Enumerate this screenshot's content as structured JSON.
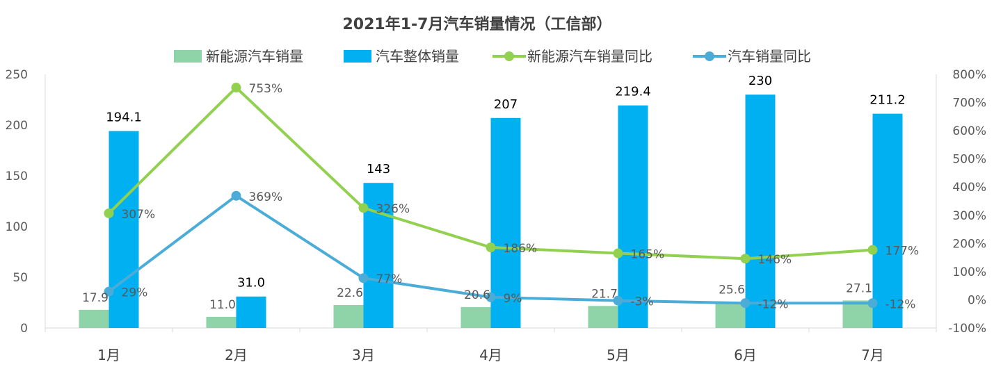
{
  "chart_data": {
    "type": "bar",
    "title": "2021年1-7月汽车销量情况（工信部）",
    "categories": [
      "1月",
      "2月",
      "3月",
      "4月",
      "5月",
      "6月",
      "7月"
    ],
    "series": [
      {
        "name": "新能源汽车销量",
        "kind": "bar",
        "axis": "left",
        "color": "#8fd3a8",
        "values": [
          17.9,
          11.0,
          22.6,
          20.6,
          21.7,
          25.6,
          27.1
        ],
        "labels": [
          "17.9",
          "11.0",
          "22.6",
          "20.6",
          "21.7",
          "25.6",
          "27.1"
        ]
      },
      {
        "name": "汽车整体销量",
        "kind": "bar",
        "axis": "left",
        "color": "#00b0f0",
        "values": [
          194.1,
          31.0,
          143,
          207,
          219.4,
          230,
          211.2
        ],
        "labels": [
          "194.1",
          "31.0",
          "143",
          "207",
          "219.4",
          "230",
          "211.2"
        ]
      },
      {
        "name": "新能源汽车销量同比",
        "kind": "line",
        "axis": "right",
        "color": "#92d050",
        "values": [
          307,
          753,
          326,
          186,
          165,
          146,
          177
        ],
        "labels": [
          "307%",
          "753%",
          "326%",
          "186%",
          "165%",
          "146%",
          "177%"
        ]
      },
      {
        "name": "汽车销量同比",
        "kind": "line",
        "axis": "right",
        "color": "#4bacd8",
        "values": [
          29,
          369,
          77,
          9,
          -3,
          -12,
          -12
        ],
        "labels": [
          "29%",
          "369%",
          "77%",
          "9%",
          "-3%",
          "-12%",
          "-12%"
        ]
      }
    ],
    "y_left": {
      "range": [
        0,
        250
      ],
      "ticks": [
        "0",
        "50",
        "100",
        "150",
        "200",
        "250"
      ]
    },
    "y_right": {
      "range": [
        -100,
        800
      ],
      "ticks": [
        "-100%",
        "0%",
        "100%",
        "200%",
        "300%",
        "400%",
        "500%",
        "600%",
        "700%",
        "800%"
      ]
    },
    "grid": false,
    "legend_position": "top"
  }
}
